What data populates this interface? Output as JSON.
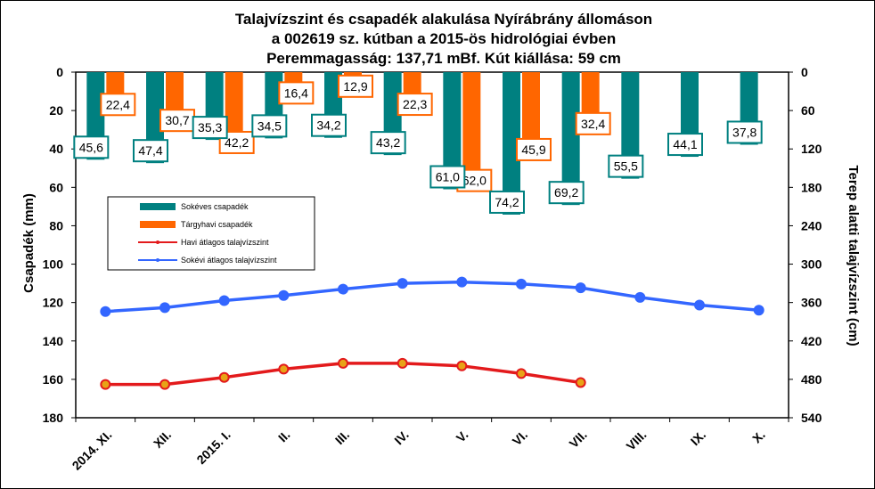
{
  "chart_data": {
    "type": "bar",
    "title": [
      "Talajvízszint és csapadék alakulása Nyírábrány állomáson",
      "a  002619 sz. kútban a 2015-ös hidrológiai évben",
      "Peremmagasság: 137,71 mBf.  Kút kiállása: 59 cm"
    ],
    "categories": [
      "2014. XI.",
      "XII.",
      "2015. I.",
      "II.",
      "III.",
      "IV.",
      "V.",
      "VI.",
      "VII.",
      "VIII.",
      "IX.",
      "X."
    ],
    "ylabel": "Csapadék (mm)",
    "y2label": "Terep alatti talajvízszint  (cm)",
    "ylim": [
      0,
      180
    ],
    "y_ticks": [
      "0",
      "20",
      "40",
      "60",
      "80",
      "100",
      "120",
      "140",
      "160",
      "180"
    ],
    "y2lim": [
      0,
      540
    ],
    "y2_ticks": [
      "0",
      "60",
      "120",
      "180",
      "240",
      "300",
      "360",
      "420",
      "480",
      "540"
    ],
    "y_inverted": true,
    "grid": false,
    "legend_position": "center-left",
    "series": [
      {
        "name": "Sokéves csapadék",
        "kind": "bar",
        "axis": "left",
        "color": "#008080",
        "values": [
          45.6,
          47.4,
          35.3,
          34.5,
          34.2,
          43.2,
          61.0,
          74.2,
          69.2,
          55.5,
          44.1,
          37.8
        ],
        "labels": [
          "45,6",
          "47,4",
          "35,3",
          "34,5",
          "34,2",
          "43,2",
          "61,0",
          "74,2",
          "69,2",
          "55,5",
          "44,1",
          "37,8"
        ]
      },
      {
        "name": "Tárgyhavi csapadék",
        "kind": "bar",
        "axis": "left",
        "color": "#FF6600",
        "values": [
          22.4,
          30.7,
          42.2,
          16.4,
          12.9,
          22.3,
          62.0,
          45.9,
          32.4,
          null,
          null,
          null
        ],
        "labels": [
          "22,4",
          "30,7",
          "42,2",
          "16,4",
          "12,9",
          "22,3",
          "62,0",
          "45,9",
          "32,4",
          null,
          null,
          null
        ]
      },
      {
        "name": "Havi átlagos talajvízszint",
        "kind": "line",
        "axis": "right",
        "color": "#E31A1C",
        "values": [
          488,
          488,
          477,
          464,
          455,
          455,
          459,
          471,
          485,
          null,
          null,
          null
        ]
      },
      {
        "name": "Sokévi átlagos talajvízszint",
        "kind": "line",
        "axis": "right",
        "color": "#3366FF",
        "values": [
          374,
          368,
          357,
          349,
          339,
          330,
          328,
          331,
          337,
          352,
          364,
          372
        ]
      }
    ]
  }
}
